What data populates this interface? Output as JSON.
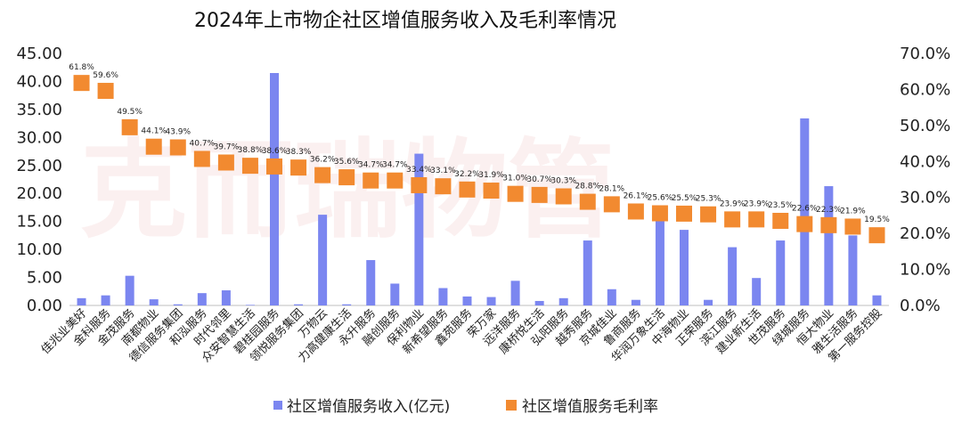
{
  "chart_data": {
    "type": "bar",
    "title": "2024年上市物企社区增值服务收入及毛利率情况",
    "categories": [
      "佳兆业美好",
      "金科服务",
      "金茂服务",
      "南都物业",
      "德信服务集团",
      "和泓服务",
      "时代邻里",
      "众安智慧生活",
      "碧桂园服务",
      "领悦服务集团",
      "万物云",
      "力高健康生活",
      "永升服务",
      "融创服务",
      "保利物业",
      "新希望服务",
      "鑫苑服务",
      "荣万家",
      "远洋服务",
      "康桥悦生活",
      "弘阳服务",
      "越秀服务",
      "京城佳业",
      "鲁商服务",
      "华润万象生活",
      "中海物业",
      "正荣服务",
      "滨江服务",
      "建业新生活",
      "世茂服务",
      "绿城服务",
      "恒大物业",
      "雅生活服务",
      "第一服务控股"
    ],
    "series": [
      {
        "name": "社区增值服务收入(亿元)",
        "kind": "bar",
        "axis": "left",
        "color": "#7b86f0",
        "values": [
          1.3,
          1.8,
          5.3,
          1.1,
          0.2,
          2.2,
          2.7,
          0.1,
          41.5,
          0.2,
          16.2,
          0.2,
          8.1,
          3.9,
          27.1,
          3.1,
          1.6,
          1.5,
          4.4,
          0.8,
          1.3,
          11.6,
          2.9,
          1.0,
          15.6,
          13.5,
          1.0,
          10.4,
          4.9,
          11.6,
          33.4,
          21.3,
          12.5,
          1.8
        ]
      },
      {
        "name": "社区增值服务毛利率",
        "kind": "scatter",
        "axis": "right",
        "color": "#f28a30",
        "values": [
          61.8,
          59.6,
          49.5,
          44.1,
          43.9,
          40.7,
          39.7,
          38.8,
          38.6,
          38.3,
          36.2,
          35.6,
          34.7,
          34.7,
          33.4,
          33.1,
          32.2,
          31.9,
          31.0,
          30.7,
          30.3,
          28.8,
          28.1,
          26.1,
          25.6,
          25.5,
          25.3,
          23.9,
          23.9,
          23.5,
          22.6,
          22.3,
          21.9,
          19.5
        ],
        "labels": [
          "61.8%",
          "59.6%",
          "49.5%",
          "44.1%",
          "43.9%",
          "40.7%",
          "39.7%",
          "38.8%",
          "38.6%",
          "38.3%",
          "36.2%",
          "35.6%",
          "34.7%",
          "34.7%",
          "33.4%",
          "33.1%",
          "32.2%",
          "31.9%",
          "31.0%",
          "30.7%",
          "30.3%",
          "28.8%",
          "28.1%",
          "26.1%",
          "25.6%",
          "25.5%",
          "25.3%",
          "23.9%",
          "23.9%",
          "23.5%",
          "22.6%",
          "22.3%",
          "21.9%",
          "19.5%"
        ]
      }
    ],
    "y_left": {
      "lim": [
        0,
        45
      ],
      "ticks": [
        "0.00",
        "5.00",
        "10.00",
        "15.00",
        "20.00",
        "25.00",
        "30.00",
        "35.00",
        "40.00",
        "45.00"
      ]
    },
    "y_right": {
      "lim": [
        0,
        70
      ],
      "ticks": [
        "0.0%",
        "10.0%",
        "20.0%",
        "30.0%",
        "40.0%",
        "50.0%",
        "60.0%",
        "70.0%"
      ]
    },
    "grid": false,
    "legend": "bottom",
    "watermark": "克而瑞物管"
  }
}
